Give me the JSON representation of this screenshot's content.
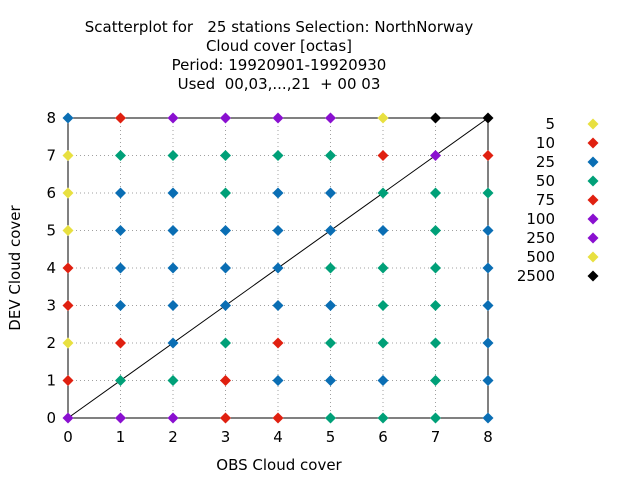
{
  "chart_data": {
    "type": "scatter",
    "title_lines": [
      "Scatterplot for   25 stations Selection: NorthNorway",
      "Cloud cover [octas]",
      "Period: 19920901-19920930",
      "Used  00,03,...,21  + 00 03"
    ],
    "xlabel": "OBS Cloud cover",
    "ylabel": "DEV Cloud cover",
    "xlim": [
      0,
      8
    ],
    "ylim": [
      0,
      8
    ],
    "xticks": [
      0,
      1,
      2,
      3,
      4,
      5,
      6,
      7,
      8
    ],
    "yticks": [
      0,
      1,
      2,
      3,
      4,
      5,
      6,
      7,
      8
    ],
    "grid": true,
    "diagonal_line": true,
    "legend_position": "right",
    "legend": [
      {
        "label": "5",
        "color": "#e8e040"
      },
      {
        "label": "10",
        "color": "#e02010"
      },
      {
        "label": "25",
        "color": "#0a6eb4"
      },
      {
        "label": "50",
        "color": "#00a078"
      },
      {
        "label": "75",
        "color": "#e02010"
      },
      {
        "label": "100",
        "color": "#8a10d0"
      },
      {
        "label": "250",
        "color": "#8a10d0"
      },
      {
        "label": "500",
        "color": "#e8e040"
      },
      {
        "label": "2500",
        "color": "#000000"
      }
    ],
    "colors": {
      "yellow": "#e8e040",
      "red": "#e02010",
      "blue": "#0a6eb4",
      "green": "#00a078",
      "purple": "#8a10d0",
      "black": "#000000"
    },
    "points": [
      {
        "x": 0,
        "y": 0,
        "c": "purple"
      },
      {
        "x": 0,
        "y": 1,
        "c": "red"
      },
      {
        "x": 0,
        "y": 2,
        "c": "yellow"
      },
      {
        "x": 0,
        "y": 3,
        "c": "red"
      },
      {
        "x": 0,
        "y": 4,
        "c": "red"
      },
      {
        "x": 0,
        "y": 5,
        "c": "yellow"
      },
      {
        "x": 0,
        "y": 6,
        "c": "yellow"
      },
      {
        "x": 0,
        "y": 7,
        "c": "yellow"
      },
      {
        "x": 0,
        "y": 8,
        "c": "blue"
      },
      {
        "x": 1,
        "y": 0,
        "c": "purple"
      },
      {
        "x": 1,
        "y": 1,
        "c": "green"
      },
      {
        "x": 1,
        "y": 2,
        "c": "red"
      },
      {
        "x": 1,
        "y": 3,
        "c": "blue"
      },
      {
        "x": 1,
        "y": 4,
        "c": "blue"
      },
      {
        "x": 1,
        "y": 5,
        "c": "blue"
      },
      {
        "x": 1,
        "y": 6,
        "c": "blue"
      },
      {
        "x": 1,
        "y": 7,
        "c": "green"
      },
      {
        "x": 1,
        "y": 8,
        "c": "red"
      },
      {
        "x": 2,
        "y": 0,
        "c": "purple"
      },
      {
        "x": 2,
        "y": 1,
        "c": "green"
      },
      {
        "x": 2,
        "y": 2,
        "c": "blue"
      },
      {
        "x": 2,
        "y": 3,
        "c": "blue"
      },
      {
        "x": 2,
        "y": 4,
        "c": "blue"
      },
      {
        "x": 2,
        "y": 5,
        "c": "blue"
      },
      {
        "x": 2,
        "y": 6,
        "c": "blue"
      },
      {
        "x": 2,
        "y": 7,
        "c": "green"
      },
      {
        "x": 2,
        "y": 8,
        "c": "purple"
      },
      {
        "x": 3,
        "y": 0,
        "c": "red"
      },
      {
        "x": 3,
        "y": 1,
        "c": "red"
      },
      {
        "x": 3,
        "y": 2,
        "c": "green"
      },
      {
        "x": 3,
        "y": 3,
        "c": "blue"
      },
      {
        "x": 3,
        "y": 4,
        "c": "blue"
      },
      {
        "x": 3,
        "y": 5,
        "c": "blue"
      },
      {
        "x": 3,
        "y": 6,
        "c": "green"
      },
      {
        "x": 3,
        "y": 7,
        "c": "green"
      },
      {
        "x": 3,
        "y": 8,
        "c": "purple"
      },
      {
        "x": 4,
        "y": 0,
        "c": "red"
      },
      {
        "x": 4,
        "y": 1,
        "c": "blue"
      },
      {
        "x": 4,
        "y": 2,
        "c": "red"
      },
      {
        "x": 4,
        "y": 3,
        "c": "blue"
      },
      {
        "x": 4,
        "y": 4,
        "c": "blue"
      },
      {
        "x": 4,
        "y": 5,
        "c": "blue"
      },
      {
        "x": 4,
        "y": 6,
        "c": "blue"
      },
      {
        "x": 4,
        "y": 7,
        "c": "green"
      },
      {
        "x": 4,
        "y": 8,
        "c": "purple"
      },
      {
        "x": 5,
        "y": 0,
        "c": "green"
      },
      {
        "x": 5,
        "y": 1,
        "c": "blue"
      },
      {
        "x": 5,
        "y": 2,
        "c": "green"
      },
      {
        "x": 5,
        "y": 3,
        "c": "blue"
      },
      {
        "x": 5,
        "y": 4,
        "c": "green"
      },
      {
        "x": 5,
        "y": 5,
        "c": "blue"
      },
      {
        "x": 5,
        "y": 6,
        "c": "blue"
      },
      {
        "x": 5,
        "y": 7,
        "c": "green"
      },
      {
        "x": 5,
        "y": 8,
        "c": "purple"
      },
      {
        "x": 6,
        "y": 0,
        "c": "green"
      },
      {
        "x": 6,
        "y": 1,
        "c": "blue"
      },
      {
        "x": 6,
        "y": 2,
        "c": "green"
      },
      {
        "x": 6,
        "y": 3,
        "c": "green"
      },
      {
        "x": 6,
        "y": 4,
        "c": "green"
      },
      {
        "x": 6,
        "y": 5,
        "c": "blue"
      },
      {
        "x": 6,
        "y": 6,
        "c": "green"
      },
      {
        "x": 6,
        "y": 7,
        "c": "red"
      },
      {
        "x": 6,
        "y": 8,
        "c": "yellow"
      },
      {
        "x": 7,
        "y": 0,
        "c": "green"
      },
      {
        "x": 7,
        "y": 1,
        "c": "green"
      },
      {
        "x": 7,
        "y": 2,
        "c": "green"
      },
      {
        "x": 7,
        "y": 3,
        "c": "green"
      },
      {
        "x": 7,
        "y": 4,
        "c": "green"
      },
      {
        "x": 7,
        "y": 5,
        "c": "green"
      },
      {
        "x": 7,
        "y": 6,
        "c": "green"
      },
      {
        "x": 7,
        "y": 7,
        "c": "purple"
      },
      {
        "x": 7,
        "y": 8,
        "c": "black"
      },
      {
        "x": 8,
        "y": 0,
        "c": "blue"
      },
      {
        "x": 8,
        "y": 1,
        "c": "blue"
      },
      {
        "x": 8,
        "y": 2,
        "c": "blue"
      },
      {
        "x": 8,
        "y": 3,
        "c": "blue"
      },
      {
        "x": 8,
        "y": 4,
        "c": "blue"
      },
      {
        "x": 8,
        "y": 5,
        "c": "blue"
      },
      {
        "x": 8,
        "y": 6,
        "c": "green"
      },
      {
        "x": 8,
        "y": 7,
        "c": "red"
      },
      {
        "x": 8,
        "y": 8,
        "c": "black"
      }
    ]
  }
}
